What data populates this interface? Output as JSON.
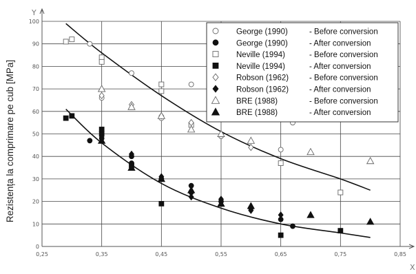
{
  "chart_data": {
    "type": "scatter",
    "xlabel": "X",
    "ylabel": "Rezistența la comprimare pe cub [MPa]",
    "y_axis_letter": "Y",
    "xlim": [
      0.25,
      0.85
    ],
    "ylim": [
      0,
      100
    ],
    "x_ticks": [
      "0,25",
      "0,35",
      "0,45",
      "0,55",
      "0,65",
      "0,75",
      "0,85"
    ],
    "x_tick_values": [
      0.25,
      0.35,
      0.45,
      0.55,
      0.65,
      0.75,
      0.85
    ],
    "y_ticks": [
      "0",
      "10",
      "20",
      "30",
      "40",
      "50",
      "60",
      "70",
      "80",
      "90",
      "100"
    ],
    "y_tick_values": [
      0,
      10,
      20,
      30,
      40,
      50,
      60,
      70,
      80,
      90,
      100
    ],
    "grid": true,
    "legend_position": "top-right",
    "series": [
      {
        "name": "George (1990)",
        "desc": "- Before conversion",
        "marker": "circle-open",
        "points": [
          [
            0.33,
            90
          ],
          [
            0.35,
            66
          ],
          [
            0.4,
            77
          ],
          [
            0.45,
            57
          ],
          [
            0.5,
            72
          ],
          [
            0.55,
            49
          ],
          [
            0.65,
            43
          ],
          [
            0.67,
            55
          ]
        ]
      },
      {
        "name": "George (1990)",
        "desc": "- After conversion",
        "marker": "circle-filled",
        "points": [
          [
            0.33,
            47
          ],
          [
            0.35,
            48
          ],
          [
            0.4,
            40
          ],
          [
            0.4,
            37
          ],
          [
            0.45,
            30
          ],
          [
            0.5,
            27
          ],
          [
            0.5,
            24
          ],
          [
            0.55,
            20
          ],
          [
            0.6,
            17
          ],
          [
            0.65,
            12
          ],
          [
            0.67,
            9
          ]
        ]
      },
      {
        "name": "Neville (1994)",
        "desc": "- Before conversion",
        "marker": "square-open",
        "points": [
          [
            0.29,
            91
          ],
          [
            0.3,
            92
          ],
          [
            0.35,
            84
          ],
          [
            0.35,
            82
          ],
          [
            0.45,
            72
          ],
          [
            0.45,
            69
          ],
          [
            0.5,
            54
          ],
          [
            0.65,
            37
          ],
          [
            0.75,
            24
          ]
        ]
      },
      {
        "name": "Neville (1994)",
        "desc": "- After conversion",
        "marker": "square-filled",
        "points": [
          [
            0.29,
            57
          ],
          [
            0.3,
            58
          ],
          [
            0.35,
            52
          ],
          [
            0.35,
            50
          ],
          [
            0.4,
            36
          ],
          [
            0.45,
            19
          ],
          [
            0.65,
            5
          ],
          [
            0.75,
            7
          ]
        ]
      },
      {
        "name": "Robson (1962)",
        "desc": "- Before conversion",
        "marker": "diamond-open",
        "points": [
          [
            0.35,
            67
          ],
          [
            0.4,
            63
          ],
          [
            0.45,
            58
          ],
          [
            0.5,
            55
          ],
          [
            0.6,
            44
          ]
        ]
      },
      {
        "name": "Robson (1962)",
        "desc": "- After conversion",
        "marker": "diamond-filled",
        "points": [
          [
            0.35,
            49
          ],
          [
            0.4,
            41
          ],
          [
            0.45,
            31
          ],
          [
            0.5,
            22
          ],
          [
            0.55,
            21
          ],
          [
            0.6,
            16
          ],
          [
            0.65,
            14
          ]
        ]
      },
      {
        "name": "BRE (1988)",
        "desc": "- Before conversion",
        "marker": "triangle-open",
        "points": [
          [
            0.35,
            70
          ],
          [
            0.4,
            62
          ],
          [
            0.45,
            58
          ],
          [
            0.5,
            52
          ],
          [
            0.55,
            50
          ],
          [
            0.6,
            47
          ],
          [
            0.7,
            42
          ],
          [
            0.8,
            38
          ]
        ]
      },
      {
        "name": "BRE (1988)",
        "desc": "- After conversion",
        "marker": "triangle-filled",
        "points": [
          [
            0.35,
            47
          ],
          [
            0.4,
            35
          ],
          [
            0.45,
            30
          ],
          [
            0.5,
            25
          ],
          [
            0.55,
            19
          ],
          [
            0.6,
            18
          ],
          [
            0.7,
            14
          ],
          [
            0.8,
            11
          ]
        ]
      }
    ],
    "trend_lines": [
      {
        "name": "before-conversion-trend",
        "points": [
          [
            0.29,
            99
          ],
          [
            0.35,
            86
          ],
          [
            0.45,
            67
          ],
          [
            0.55,
            51
          ],
          [
            0.65,
            39
          ],
          [
            0.75,
            30
          ],
          [
            0.8,
            25
          ]
        ]
      },
      {
        "name": "after-conversion-trend",
        "points": [
          [
            0.29,
            61
          ],
          [
            0.35,
            46
          ],
          [
            0.45,
            28
          ],
          [
            0.55,
            17
          ],
          [
            0.65,
            10
          ],
          [
            0.75,
            6
          ],
          [
            0.8,
            4
          ]
        ]
      }
    ]
  }
}
